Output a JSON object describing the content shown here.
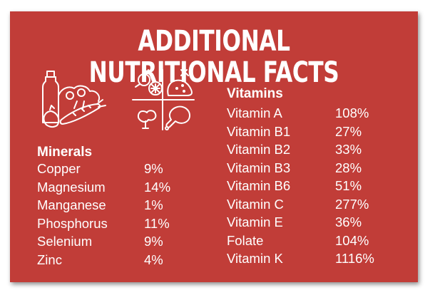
{
  "title": "ADDITIONAL NUTRITIONAL FACTS",
  "minerals": {
    "heading": "Minerals",
    "items": [
      {
        "name": "Copper",
        "value": "9%"
      },
      {
        "name": "Magnesium",
        "value": "14%"
      },
      {
        "name": "Manganese",
        "value": "1%"
      },
      {
        "name": "Phosphorus",
        "value": "11%"
      },
      {
        "name": "Selenium",
        "value": "9%"
      },
      {
        "name": "Zinc",
        "value": "4%"
      }
    ]
  },
  "vitamins": {
    "heading": "Vitamins",
    "items": [
      {
        "name": "Vitamin A",
        "value": "108%"
      },
      {
        "name": "Vitamin B1",
        "value": "27%"
      },
      {
        "name": "Vitamin B2",
        "value": "33%"
      },
      {
        "name": "Vitamin B3",
        "value": "28%"
      },
      {
        "name": "Vitamin B6",
        "value": "51%"
      },
      {
        "name": "Vitamin C",
        "value": "277%"
      },
      {
        "name": "Vitamin E",
        "value": "36%"
      },
      {
        "name": "Folate",
        "value": "104%"
      },
      {
        "name": "Vitamin K",
        "value": "1116%"
      }
    ]
  },
  "icons": {
    "grocery": "grocery-bag-icon",
    "food_groups": "food-groups-icon"
  },
  "colors": {
    "card_background": "#c13d38",
    "text": "#ffffff"
  }
}
